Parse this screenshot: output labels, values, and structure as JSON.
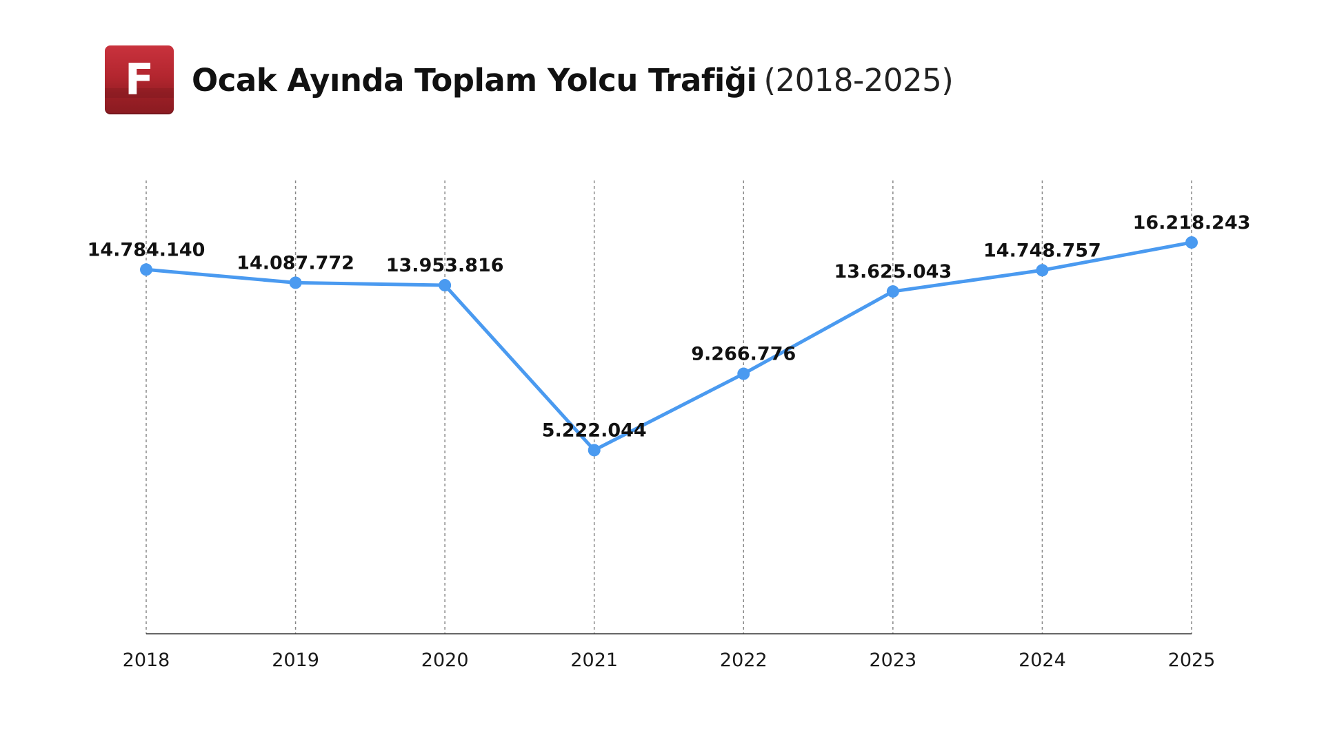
{
  "header": {
    "logo_letter": "F",
    "title_main": "Ocak Ayında Toplam Yolcu Trafiği",
    "title_sub": "(2018-2025)"
  },
  "colors": {
    "line": "#4a9af0",
    "logo": "#b3262f",
    "grid": "#888888",
    "axis": "#333333"
  },
  "chart_data": {
    "type": "line",
    "title": "Ocak Ayında Toplam Yolcu Trafiği (2018-2025)",
    "xlabel": "",
    "ylabel": "",
    "categories": [
      "2018",
      "2019",
      "2020",
      "2021",
      "2022",
      "2023",
      "2024",
      "2025"
    ],
    "series": [
      {
        "values": [
          14784140,
          14087772,
          13953816,
          5222044,
          9266776,
          13625043,
          14748757,
          16218243
        ],
        "labels": [
          "14.784.140",
          "14.087.772",
          "13.953.816",
          "5.222.044",
          "9.266.776",
          "13.625.043",
          "14.748.757",
          "16.218.243"
        ]
      }
    ],
    "ylim": [
      -4500000,
      19500000
    ],
    "grid": "vertical dashed",
    "legend": "none"
  }
}
